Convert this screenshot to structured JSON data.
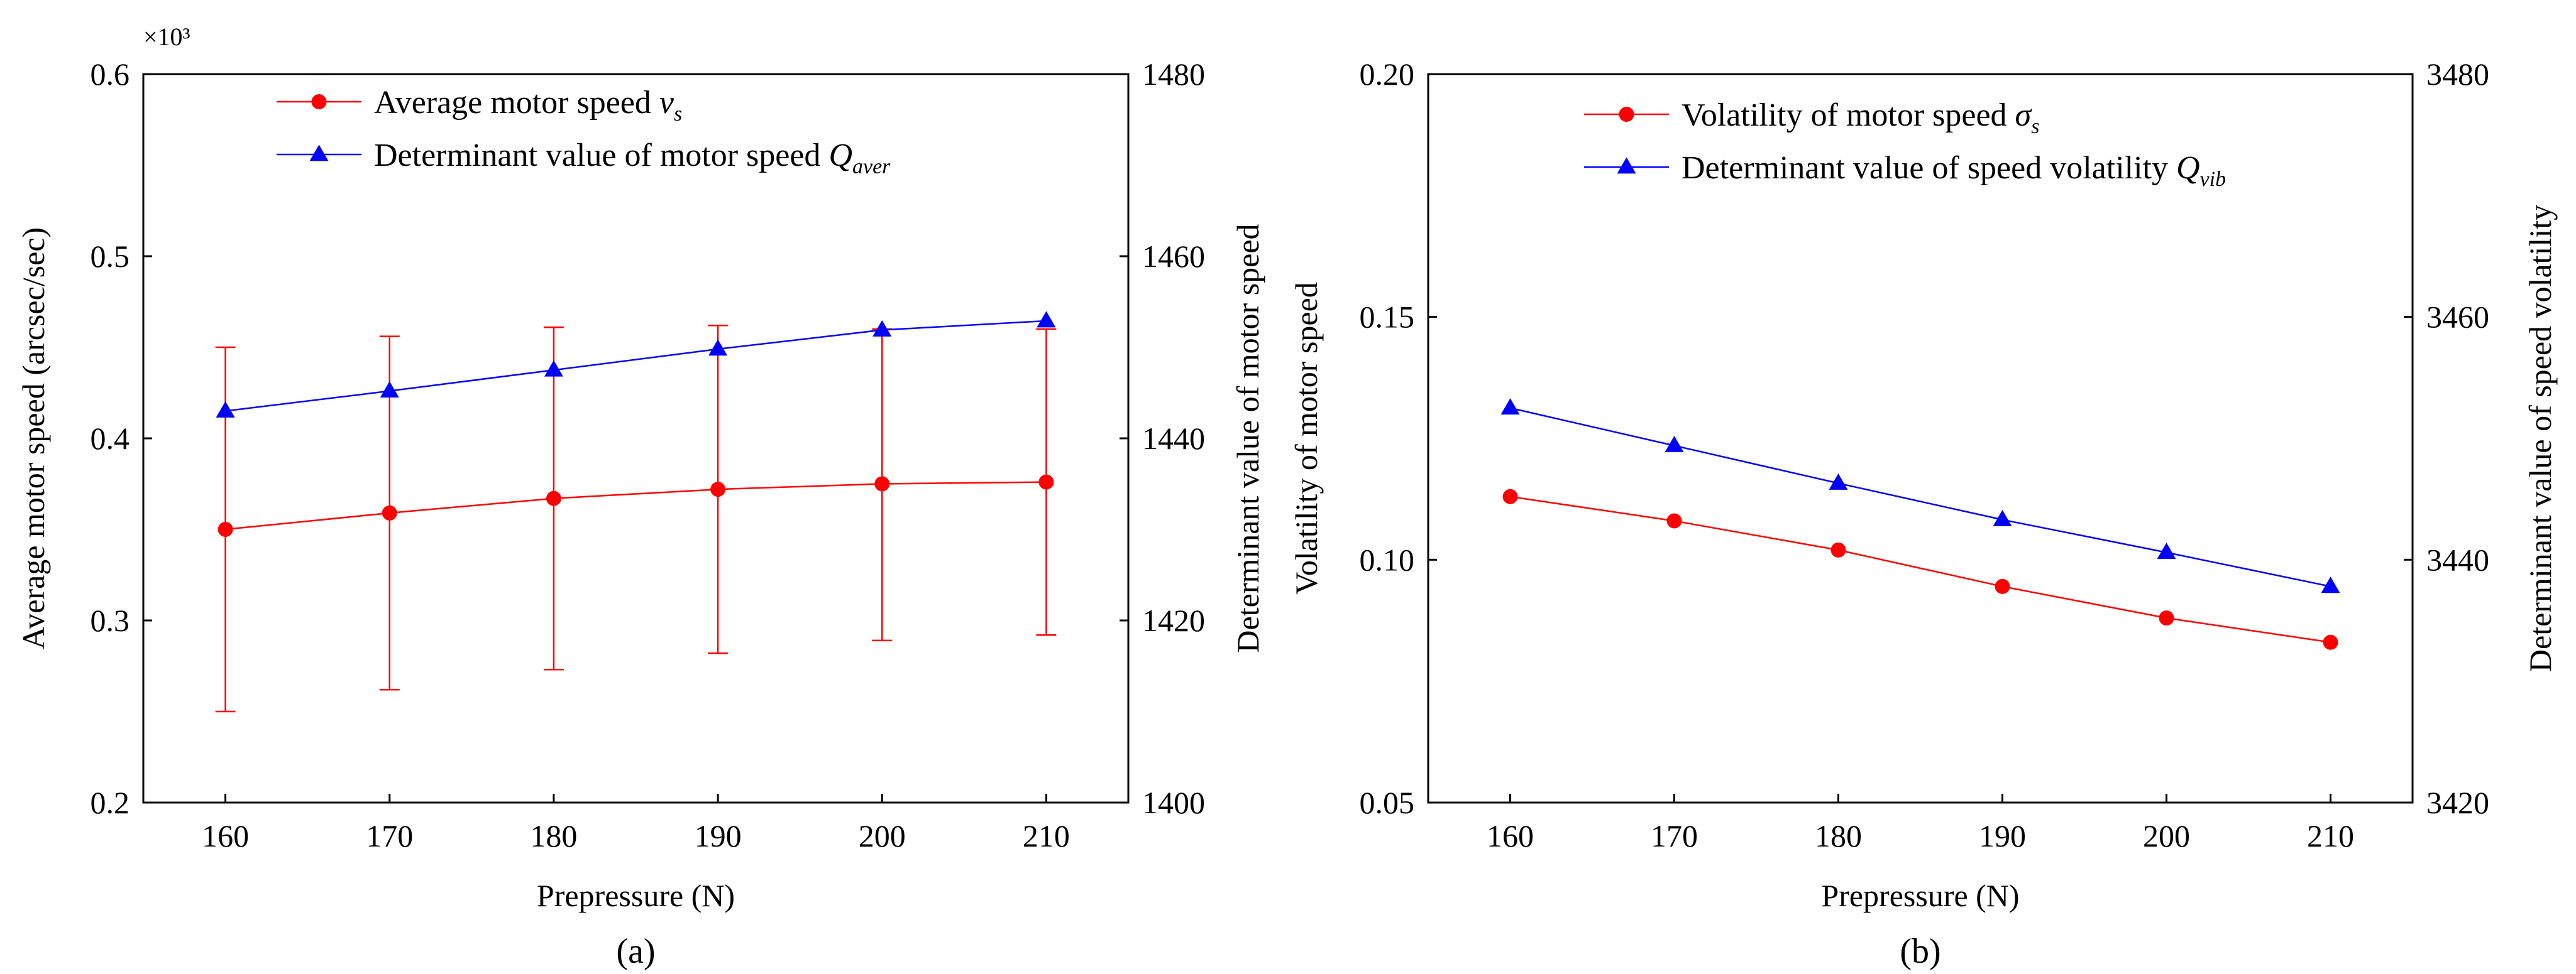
{
  "chart_data": [
    {
      "id": "a",
      "type": "line",
      "panel_label": "(a)",
      "xlabel": "Prepressure (N)",
      "x": [
        160,
        170,
        180,
        190,
        200,
        210
      ],
      "xlim": [
        155,
        215
      ],
      "x_ticks": [
        "160",
        "170",
        "180",
        "190",
        "200",
        "210"
      ],
      "ylabel_left": "Average motor speed (arcsec/sec)",
      "ylim_left": [
        0.2,
        0.6
      ],
      "y_ticks_left": [
        "0.2",
        "0.3",
        "0.4",
        "0.5",
        "0.6"
      ],
      "y_multiplier": "×10³",
      "ylabel_right": "Determinant value of motor speed",
      "ylim_right": [
        1400,
        1480
      ],
      "y_ticks_right": [
        "1400",
        "1420",
        "1440",
        "1460",
        "1480"
      ],
      "legend_position": "top-left",
      "series": [
        {
          "name": "Average motor speed",
          "symbol_base": "v",
          "symbol_sub": "s",
          "axis": "left",
          "color": "#ff0000",
          "marker": "circle",
          "values": [
            0.35,
            0.359,
            0.367,
            0.372,
            0.375,
            0.376
          ],
          "error_upper": [
            0.45,
            0.456,
            0.461,
            0.462,
            0.46,
            0.46
          ],
          "error_lower": [
            0.25,
            0.262,
            0.273,
            0.282,
            0.289,
            0.292
          ]
        },
        {
          "name": "Determinant value of motor speed",
          "symbol_base": "Q",
          "symbol_sub": "aver",
          "axis": "right",
          "color": "#0000ff",
          "marker": "triangle",
          "values": [
            1443.0,
            1445.2,
            1447.5,
            1449.8,
            1451.9,
            1452.9
          ]
        }
      ]
    },
    {
      "id": "b",
      "type": "line",
      "panel_label": "(b)",
      "xlabel": "Prepressure (N)",
      "x": [
        160,
        170,
        180,
        190,
        200,
        210
      ],
      "xlim": [
        155,
        215
      ],
      "x_ticks": [
        "160",
        "170",
        "180",
        "190",
        "200",
        "210"
      ],
      "ylabel_left": "Volatility of motor speed",
      "ylim_left": [
        0.05,
        0.2
      ],
      "y_ticks_left": [
        "0.05",
        "0.10",
        "0.15",
        "0.20"
      ],
      "ylabel_right": "Determinant value of speed volatility",
      "ylim_right": [
        3420,
        3480
      ],
      "y_ticks_right": [
        "3420",
        "3440",
        "3460",
        "3480"
      ],
      "legend_position": "top-center",
      "series": [
        {
          "name": "Volatility of motor speed",
          "symbol_base": "σ",
          "symbol_sub": "s",
          "axis": "left",
          "color": "#ff0000",
          "marker": "circle",
          "values": [
            0.113,
            0.108,
            0.102,
            0.0945,
            0.088,
            0.083
          ]
        },
        {
          "name": "Determinant value of speed volatility",
          "symbol_base": "Q",
          "symbol_sub": "vib",
          "axis": "right",
          "color": "#0000ff",
          "marker": "triangle",
          "values": [
            3452.5,
            3449.4,
            3446.3,
            3443.3,
            3440.6,
            3437.8
          ]
        }
      ]
    }
  ]
}
